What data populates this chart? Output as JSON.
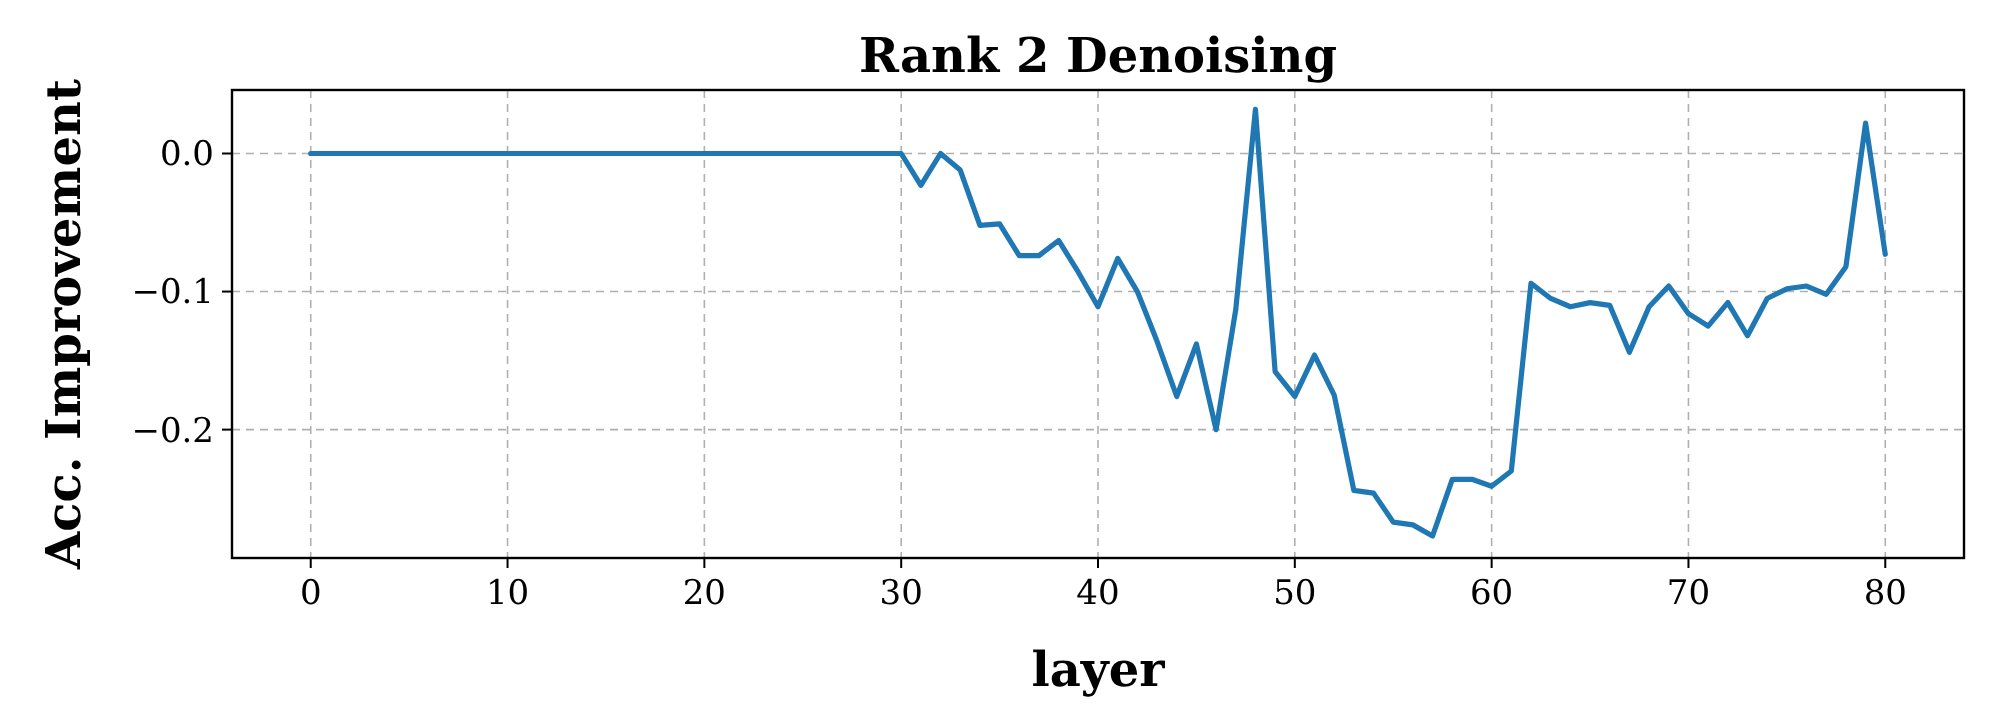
{
  "chart_data": {
    "type": "line",
    "title": "Rank 2 Denoising",
    "xlabel": "layer",
    "ylabel": "Acc. Improvement",
    "x": [
      0,
      1,
      2,
      3,
      4,
      5,
      6,
      7,
      8,
      9,
      10,
      11,
      12,
      13,
      14,
      15,
      16,
      17,
      18,
      19,
      20,
      21,
      22,
      23,
      24,
      25,
      26,
      27,
      28,
      29,
      30,
      31,
      32,
      33,
      34,
      35,
      36,
      37,
      38,
      39,
      40,
      41,
      42,
      43,
      44,
      45,
      46,
      47,
      48,
      49,
      50,
      51,
      52,
      53,
      54,
      55,
      56,
      57,
      58,
      59,
      60,
      61,
      62,
      63,
      64,
      65,
      66,
      67,
      68,
      69,
      70,
      71,
      72,
      73,
      74,
      75,
      76,
      77,
      78,
      79,
      80
    ],
    "series": [
      {
        "color": "#1f77b4",
        "values": [
          0,
          0,
          0,
          0,
          0,
          0,
          0,
          0,
          0,
          0,
          0,
          0,
          0,
          0,
          0,
          0,
          0,
          0,
          0,
          0,
          0,
          0,
          0,
          0,
          0,
          0,
          0,
          0,
          0,
          0,
          0,
          -0.023,
          0,
          -0.012,
          -0.052,
          -0.051,
          -0.074,
          -0.074,
          -0.063,
          -0.086,
          -0.111,
          -0.076,
          -0.1,
          -0.136,
          -0.176,
          -0.138,
          -0.2,
          -0.113,
          0.032,
          -0.158,
          -0.176,
          -0.146,
          -0.175,
          -0.244,
          -0.246,
          -0.267,
          -0.269,
          -0.277,
          -0.236,
          -0.236,
          -0.241,
          -0.23,
          -0.094,
          -0.105,
          -0.111,
          -0.108,
          -0.11,
          -0.144,
          -0.111,
          -0.096,
          -0.116,
          -0.125,
          -0.108,
          -0.132,
          -0.105,
          -0.098,
          -0.096,
          -0.102,
          -0.082,
          0.022,
          -0.073
        ]
      }
    ],
    "xlim": [
      -4,
      84
    ],
    "ylim": [
      -0.293,
      0.046
    ],
    "xticks": [
      0,
      10,
      20,
      30,
      40,
      50,
      60,
      70,
      80
    ],
    "yticks": [
      {
        "value": 0,
        "label": "0.0"
      },
      {
        "value": -0.1,
        "label": "−0.1"
      },
      {
        "value": -0.2,
        "label": "−0.2"
      }
    ],
    "grid": true,
    "line_style": "solid",
    "marker": "none"
  }
}
